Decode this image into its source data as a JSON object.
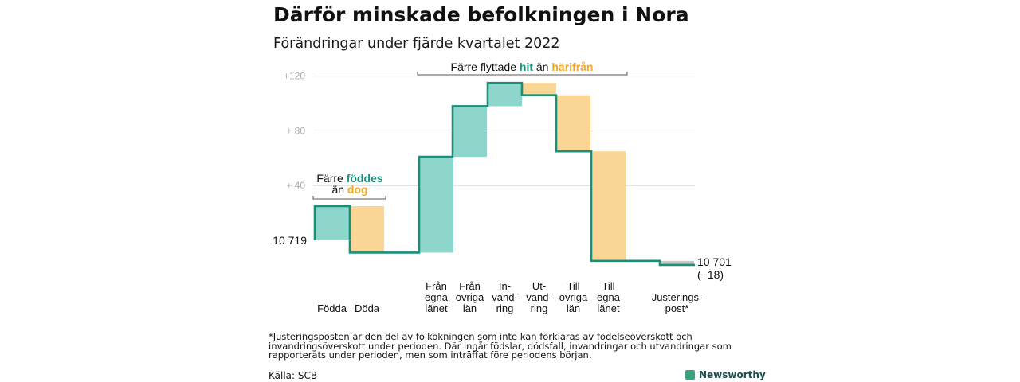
{
  "title": "Därför minskade befolkningen i Nora",
  "subtitle": "Förändringar under fjärde kvartalet 2022",
  "colors": {
    "increase": "#8ed6cb",
    "decrease": "#fad593",
    "adjust": "#c8c8c8",
    "line": "#1a8f7a",
    "teal_text": "#1a8f7a",
    "orange_text": "#f0a72a",
    "grid": "#d9d9d9",
    "tick": "#aaaaaa"
  },
  "chart_data": {
    "type": "waterfall",
    "start_value": 10719,
    "start_label": "10 719",
    "end_value": 10701,
    "end_label": "10 701",
    "end_change_label": "(−18)",
    "y_ticks": [
      {
        "value": 40,
        "label": "+ 40"
      },
      {
        "value": 80,
        "label": "+ 80"
      },
      {
        "value": 120,
        "label": "+120"
      }
    ],
    "steps": [
      {
        "label_lines": [
          "Födda"
        ],
        "change": 25,
        "kind": "increase"
      },
      {
        "label_lines": [
          "Döda"
        ],
        "change": -34,
        "kind": "decrease"
      },
      {
        "label_lines": [
          "Från",
          "egna",
          "länet"
        ],
        "change": 70,
        "kind": "increase"
      },
      {
        "label_lines": [
          "Från",
          "övriga",
          "län"
        ],
        "change": 37,
        "kind": "increase"
      },
      {
        "label_lines": [
          "In-",
          "vand-",
          "ring"
        ],
        "change": 17,
        "kind": "increase"
      },
      {
        "label_lines": [
          "Ut-",
          "vand-",
          "ring"
        ],
        "change": -9,
        "kind": "decrease"
      },
      {
        "label_lines": [
          "Till",
          "övriga",
          "län"
        ],
        "change": -41,
        "kind": "decrease"
      },
      {
        "label_lines": [
          "Till",
          "egna",
          "länet"
        ],
        "change": -80,
        "kind": "decrease"
      },
      {
        "label_lines": [
          "Justerings-",
          "post*"
        ],
        "change": -3,
        "kind": "adjust"
      }
    ],
    "annotations": {
      "births": {
        "line1": "Färre",
        "line1_highlight": "föddes",
        "line2_highlight": "dog",
        "line2": "än"
      },
      "migration": {
        "text1": "Färre flyttade",
        "highlight1": "hit",
        "text2": "än",
        "highlight2": "härifrån"
      }
    }
  },
  "footnote": "*Justeringsposten är den del av folkökningen som inte kan förklaras av födelseöverskott och invandringsöverskott under perioden. Där ingår födslar, dödsfall, invandringar och utvandringar som rapporterats under perioden, men som inträffat före periodens början.",
  "source": "Källa: SCB",
  "brand": "Newsworthy"
}
